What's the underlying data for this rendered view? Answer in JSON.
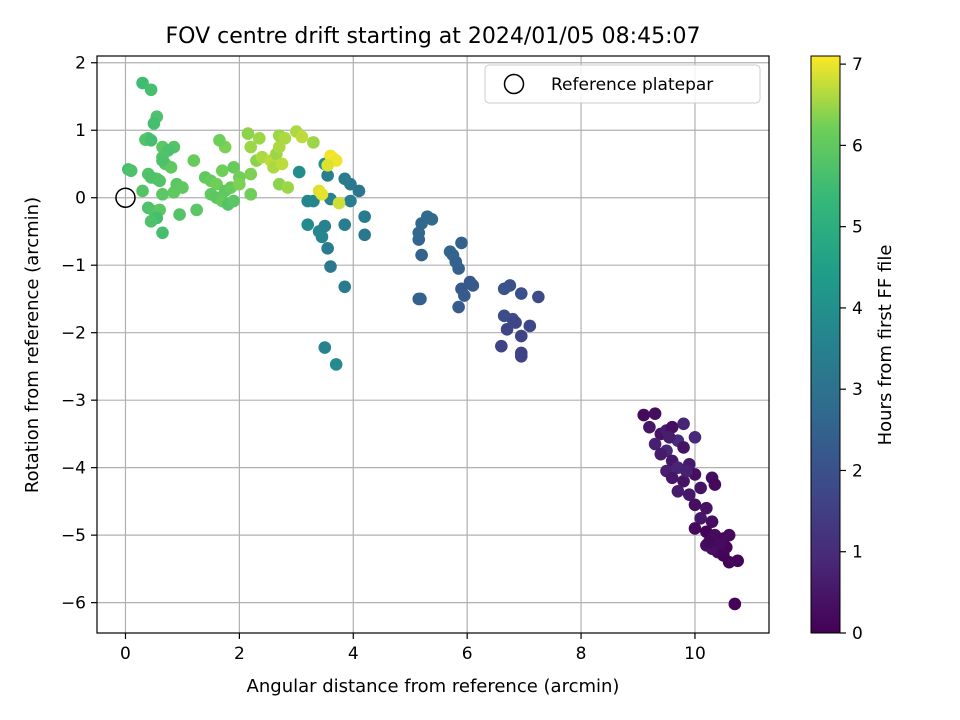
{
  "chart_data": {
    "type": "scatter",
    "title": "FOV centre drift starting at 2024/01/05 08:45:07",
    "xlabel": "Angular distance from reference (arcmin)",
    "ylabel": "Rotation from reference (arcmin)",
    "xlim": [
      -0.5,
      11.3
    ],
    "ylim": [
      -6.45,
      2.1
    ],
    "x_ticks": [
      0,
      2,
      4,
      6,
      8,
      10
    ],
    "y_ticks": [
      2,
      1,
      0,
      -1,
      -2,
      -3,
      -4,
      -5,
      -6
    ],
    "x_tick_labels": [
      "0",
      "2",
      "4",
      "6",
      "8",
      "10"
    ],
    "y_tick_labels": [
      "2",
      "1",
      "0",
      "−1",
      "−2",
      "−3",
      "−4",
      "−5",
      "−6"
    ],
    "grid": true,
    "legend": {
      "placement": "top-right",
      "entries": [
        {
          "label": "Reference platepar",
          "marker": "open-circle"
        }
      ]
    },
    "reference_point": {
      "x": 0,
      "y": 0
    },
    "colorbar": {
      "label": "Hours from first FF file",
      "colormap": "viridis",
      "range": [
        0,
        7.1
      ],
      "ticks": [
        0,
        1,
        2,
        3,
        4,
        5,
        6,
        7
      ],
      "tick_labels": [
        "0",
        "1",
        "2",
        "3",
        "4",
        "5",
        "6",
        "7"
      ]
    },
    "points": [
      [
        9.1,
        -3.22,
        0.2
      ],
      [
        9.3,
        -3.2,
        0.3
      ],
      [
        9.2,
        -3.4,
        0.5
      ],
      [
        9.4,
        -3.5,
        0.4
      ],
      [
        9.5,
        -3.45,
        0.6
      ],
      [
        9.3,
        -3.65,
        0.7
      ],
      [
        9.6,
        -3.4,
        0.3
      ],
      [
        9.8,
        -3.35,
        0.8
      ],
      [
        9.5,
        -3.75,
        0.9
      ],
      [
        9.7,
        -3.6,
        1.0
      ],
      [
        9.4,
        -3.8,
        0.6
      ],
      [
        9.6,
        -3.9,
        0.5
      ],
      [
        9.8,
        -3.7,
        0.4
      ],
      [
        10.0,
        -3.55,
        0.9
      ],
      [
        9.5,
        -4.05,
        0.7
      ],
      [
        9.7,
        -4.0,
        0.8
      ],
      [
        9.9,
        -3.95,
        0.6
      ],
      [
        9.6,
        -4.15,
        0.5
      ],
      [
        9.8,
        -4.2,
        0.4
      ],
      [
        10.0,
        -4.1,
        0.3
      ],
      [
        9.7,
        -4.35,
        0.6
      ],
      [
        9.9,
        -4.4,
        0.5
      ],
      [
        10.1,
        -4.3,
        0.4
      ],
      [
        10.3,
        -4.15,
        0.3
      ],
      [
        10.35,
        -4.25,
        0.2
      ],
      [
        10.0,
        -4.55,
        0.3
      ],
      [
        10.2,
        -4.6,
        0.4
      ],
      [
        10.1,
        -4.75,
        0.5
      ],
      [
        10.3,
        -4.8,
        0.3
      ],
      [
        10.0,
        -4.9,
        0.2
      ],
      [
        10.2,
        -4.95,
        0.1
      ],
      [
        10.35,
        -5.0,
        0.25
      ],
      [
        10.5,
        -5.05,
        0.15
      ],
      [
        10.6,
        -5.0,
        0.2
      ],
      [
        10.2,
        -5.15,
        0.3
      ],
      [
        10.4,
        -5.25,
        0.2
      ],
      [
        10.5,
        -5.3,
        0.1
      ],
      [
        10.3,
        -5.2,
        0.35
      ],
      [
        10.6,
        -5.4,
        0.05
      ],
      [
        10.75,
        -5.38,
        0.1
      ],
      [
        10.55,
        -5.18,
        0.12
      ],
      [
        10.7,
        -6.02,
        0.05
      ],
      [
        10.25,
        -5.1,
        0.18
      ],
      [
        10.45,
        -5.12,
        0.22
      ],
      [
        9.85,
        -4.05,
        0.75
      ],
      [
        9.55,
        -3.55,
        0.65
      ],
      [
        6.6,
        -2.2,
        1.6
      ],
      [
        6.7,
        -1.95,
        1.7
      ],
      [
        6.8,
        -1.8,
        1.8
      ],
      [
        6.65,
        -1.75,
        1.9
      ],
      [
        6.95,
        -2.05,
        1.65
      ],
      [
        6.95,
        -2.3,
        1.55
      ],
      [
        6.95,
        -2.35,
        1.6
      ],
      [
        7.1,
        -1.9,
        1.75
      ],
      [
        7.25,
        -1.47,
        1.85
      ],
      [
        6.75,
        -1.3,
        2.0
      ],
      [
        6.95,
        -1.42,
        1.95
      ],
      [
        6.65,
        -1.35,
        2.05
      ],
      [
        6.85,
        -1.85,
        1.7
      ],
      [
        5.15,
        -1.5,
        2.4
      ],
      [
        5.18,
        -1.5,
        2.45
      ],
      [
        5.85,
        -1.62,
        2.3
      ],
      [
        5.9,
        -1.35,
        2.2
      ],
      [
        5.95,
        -1.45,
        2.3
      ],
      [
        6.05,
        -1.25,
        2.2
      ],
      [
        6.1,
        -1.3,
        2.25
      ],
      [
        5.9,
        -0.67,
        2.5
      ],
      [
        5.7,
        -0.8,
        2.6
      ],
      [
        5.75,
        -0.85,
        2.55
      ],
      [
        5.85,
        -1.05,
        2.4
      ],
      [
        5.8,
        -0.95,
        2.45
      ],
      [
        5.2,
        -0.85,
        2.5
      ],
      [
        5.15,
        -0.62,
        2.6
      ],
      [
        5.15,
        -0.52,
        2.65
      ],
      [
        5.2,
        -0.38,
        2.7
      ],
      [
        5.3,
        -0.28,
        2.8
      ],
      [
        5.38,
        -0.32,
        2.75
      ],
      [
        3.5,
        -2.22,
        3.5
      ],
      [
        3.7,
        -2.47,
        3.8
      ],
      [
        3.85,
        -1.32,
        3.3
      ],
      [
        3.6,
        -1.02,
        3.2
      ],
      [
        3.55,
        -0.75,
        3.3
      ],
      [
        3.45,
        -0.58,
        3.6
      ],
      [
        3.4,
        -0.5,
        3.7
      ],
      [
        3.5,
        -0.42,
        3.5
      ],
      [
        3.2,
        -0.4,
        3.8
      ],
      [
        3.85,
        -0.4,
        3.4
      ],
      [
        4.2,
        -0.55,
        3.2
      ],
      [
        4.2,
        -0.28,
        3.3
      ],
      [
        3.2,
        -0.05,
        3.6
      ],
      [
        3.3,
        -0.05,
        3.7
      ],
      [
        3.6,
        -0.02,
        3.5
      ],
      [
        3.95,
        -0.05,
        3.4
      ],
      [
        4.1,
        0.1,
        3.1
      ],
      [
        3.95,
        0.2,
        3.2
      ],
      [
        3.85,
        0.28,
        3.3
      ],
      [
        3.55,
        0.33,
        3.4
      ],
      [
        3.05,
        0.38,
        3.9
      ],
      [
        3.5,
        0.5,
        4.0
      ],
      [
        3.6,
        0.55,
        3.5
      ],
      [
        0.3,
        1.7,
        5.5
      ],
      [
        0.45,
        1.6,
        5.6
      ],
      [
        0.55,
        1.2,
        5.7
      ],
      [
        0.5,
        1.1,
        5.6
      ],
      [
        0.4,
        0.88,
        5.7
      ],
      [
        0.35,
        0.86,
        5.8
      ],
      [
        0.45,
        0.85,
        5.6
      ],
      [
        0.65,
        0.75,
        5.9
      ],
      [
        0.85,
        0.75,
        5.8
      ],
      [
        0.75,
        0.7,
        5.7
      ],
      [
        0.65,
        0.6,
        5.8
      ],
      [
        0.7,
        0.5,
        5.9
      ],
      [
        0.8,
        0.45,
        6.0
      ],
      [
        0.65,
        0.55,
        5.7
      ],
      [
        0.05,
        0.42,
        5.6
      ],
      [
        0.1,
        0.4,
        5.7
      ],
      [
        0.4,
        0.35,
        5.8
      ],
      [
        0.55,
        0.28,
        5.9
      ],
      [
        0.45,
        0.3,
        5.7
      ],
      [
        0.6,
        0.25,
        5.8
      ],
      [
        0.9,
        0.2,
        5.9
      ],
      [
        1.0,
        0.15,
        6.0
      ],
      [
        0.3,
        0.1,
        5.8
      ],
      [
        0.65,
        0.05,
        5.9
      ],
      [
        0.85,
        0.08,
        6.0
      ],
      [
        0.4,
        -0.15,
        5.7
      ],
      [
        0.5,
        -0.2,
        5.8
      ],
      [
        0.6,
        -0.18,
        5.9
      ],
      [
        0.55,
        -0.3,
        5.6
      ],
      [
        0.45,
        -0.35,
        5.7
      ],
      [
        0.65,
        -0.52,
        5.6
      ],
      [
        0.95,
        -0.25,
        5.8
      ],
      [
        1.25,
        -0.18,
        5.9
      ],
      [
        1.2,
        0.55,
        6.1
      ],
      [
        1.4,
        0.3,
        6.0
      ],
      [
        1.5,
        0.25,
        6.1
      ],
      [
        1.6,
        0.2,
        6.2
      ],
      [
        1.5,
        0.05,
        6.0
      ],
      [
        1.6,
        0.0,
        5.9
      ],
      [
        1.7,
        -0.05,
        6.1
      ],
      [
        1.8,
        -0.1,
        5.8
      ],
      [
        1.9,
        -0.05,
        5.9
      ],
      [
        1.75,
        0.1,
        6.0
      ],
      [
        1.85,
        0.15,
        6.1
      ],
      [
        1.7,
        0.4,
        6.2
      ],
      [
        1.75,
        0.75,
        6.3
      ],
      [
        1.65,
        0.85,
        6.2
      ],
      [
        1.9,
        0.45,
        6.1
      ],
      [
        2.0,
        0.3,
        6.2
      ],
      [
        2.0,
        0.2,
        6.3
      ],
      [
        2.2,
        0.05,
        6.2
      ],
      [
        2.2,
        0.35,
        6.3
      ],
      [
        2.3,
        0.55,
        6.4
      ],
      [
        2.2,
        0.75,
        6.5
      ],
      [
        2.15,
        0.95,
        6.4
      ],
      [
        2.35,
        0.88,
        6.5
      ],
      [
        2.4,
        0.6,
        6.6
      ],
      [
        2.55,
        0.55,
        6.7
      ],
      [
        2.6,
        0.45,
        6.6
      ],
      [
        2.65,
        0.65,
        6.5
      ],
      [
        2.7,
        0.75,
        6.6
      ],
      [
        2.7,
        0.92,
        6.5
      ],
      [
        2.8,
        0.88,
        6.6
      ],
      [
        2.75,
        0.5,
        6.7
      ],
      [
        2.7,
        0.2,
        6.4
      ],
      [
        2.85,
        0.15,
        6.5
      ],
      [
        3.0,
        0.98,
        6.6
      ],
      [
        3.1,
        0.9,
        6.7
      ],
      [
        3.3,
        0.82,
        6.5
      ],
      [
        3.6,
        0.62,
        7.0
      ],
      [
        3.65,
        0.58,
        7.05
      ],
      [
        3.7,
        0.55,
        7.0
      ],
      [
        3.55,
        0.48,
        6.9
      ],
      [
        3.4,
        0.1,
        6.9
      ],
      [
        3.45,
        0.05,
        6.95
      ],
      [
        3.75,
        -0.08,
        6.8
      ]
    ]
  }
}
